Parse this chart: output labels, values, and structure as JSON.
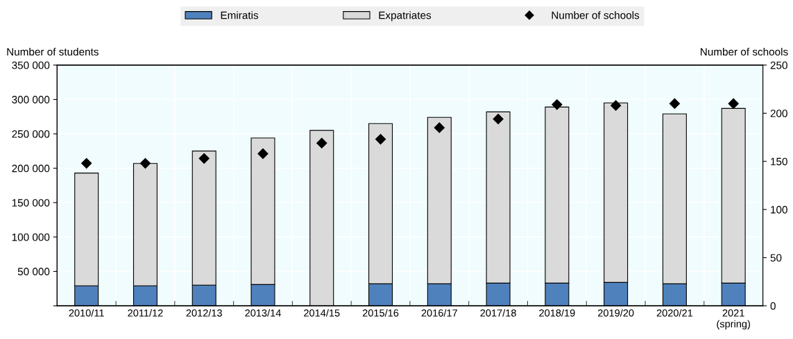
{
  "chart_data": {
    "type": "bar",
    "stacked": true,
    "categories": [
      "2010/11",
      "2011/12",
      "2012/13",
      "2013/14",
      "2014/15",
      "2015/16",
      "2016/17",
      "2017/18",
      "2018/19",
      "2019/20",
      "2020/21",
      "2021\n(spring)"
    ],
    "series": [
      {
        "name": "Emiratis",
        "color": "#4f81bd",
        "values": [
          29000,
          29000,
          30000,
          31000,
          null,
          32000,
          32000,
          33000,
          33000,
          34000,
          32000,
          33000
        ]
      },
      {
        "name": "Expatriates",
        "color": "#dadada",
        "values": [
          164000,
          178000,
          195000,
          213000,
          255000,
          233000,
          242000,
          249000,
          256000,
          261000,
          247000,
          254000
        ]
      },
      {
        "name": "Number of schools",
        "type": "scatter",
        "axis": "y2",
        "marker": "diamond",
        "color": "#000000",
        "values": [
          148,
          148,
          153,
          158,
          169,
          173,
          185,
          194,
          209,
          208,
          210,
          210
        ]
      }
    ],
    "ylabel": "Number of students",
    "y2label": "Number of schools",
    "ylim": [
      0,
      350000
    ],
    "yticks": [
      {
        "value": 0,
        "label": null
      },
      {
        "value": 50000,
        "label": "50 000"
      },
      {
        "value": 100000,
        "label": "100 000"
      },
      {
        "value": 150000,
        "label": "150 000"
      },
      {
        "value": 200000,
        "label": "200 000"
      },
      {
        "value": 250000,
        "label": "250 000"
      },
      {
        "value": 300000,
        "label": "300 000"
      },
      {
        "value": 350000,
        "label": "350 000"
      }
    ],
    "y2lim": [
      0,
      250
    ],
    "y2ticks": [
      0,
      50,
      100,
      150,
      200,
      250
    ],
    "grid": "y",
    "legend": "top"
  }
}
